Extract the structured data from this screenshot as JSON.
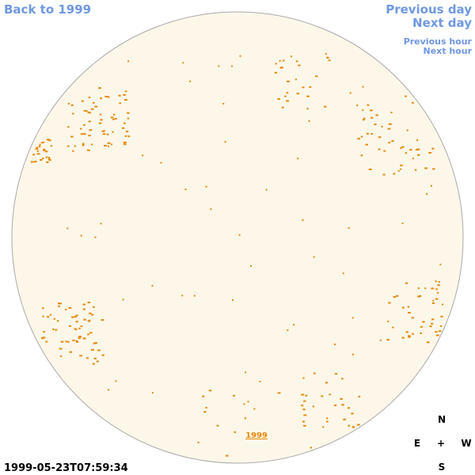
{
  "navigation": {
    "back": "Back to 1999",
    "previous_day": "Previous day",
    "next_day": "Next day",
    "previous_hour": "Previous hour",
    "next_hour": "Next hour"
  },
  "disk_link": "1999",
  "timestamp": "1999-05-23T07:59:34",
  "compass": {
    "north": "N",
    "east": "E",
    "center": "+",
    "west": "W",
    "south": "S"
  }
}
